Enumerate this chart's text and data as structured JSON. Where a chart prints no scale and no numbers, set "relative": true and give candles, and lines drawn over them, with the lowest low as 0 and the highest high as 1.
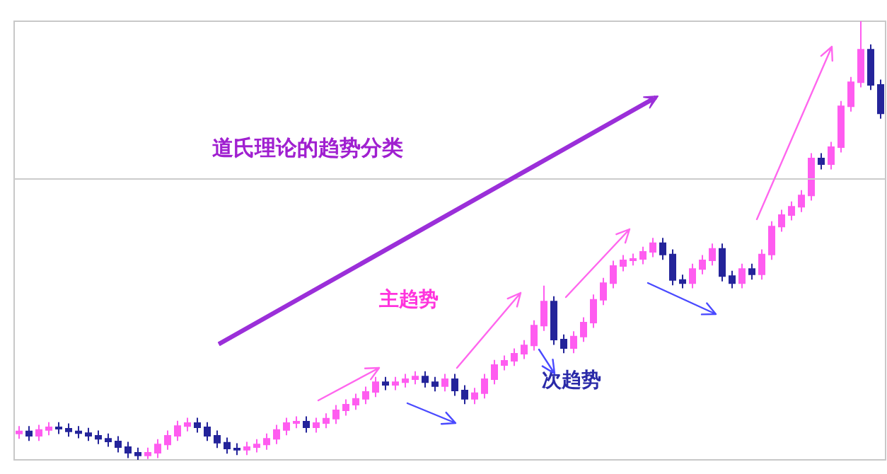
{
  "chart_data": {
    "type": "candlestick",
    "title": "道氏理论的趋势分类",
    "annotations": [
      "主趋势",
      "次趋势"
    ],
    "relative": true,
    "colors": [
      "#ff5cf0",
      "#24249a",
      "#ff5cf0",
      "#ff5cf0",
      "#24249a",
      "#24249a",
      "#24249a",
      "#24249a",
      "#24249a",
      "#24249a",
      "#24249a",
      "#24249a",
      "#24249a",
      "#ff5cf0",
      "#ff5cf0",
      "#ff5cf0",
      "#ff5cf0",
      "#ff5cf0",
      "#24249a",
      "#24249a",
      "#24249a",
      "#24249a",
      "#24249a",
      "#ff5cf0",
      "#ff5cf0",
      "#ff5cf0",
      "#ff5cf0",
      "#ff5cf0",
      "#ff5cf0",
      "#24249a",
      "#ff5cf0",
      "#ff5cf0",
      "#ff5cf0",
      "#ff5cf0",
      "#ff5cf0",
      "#ff5cf0",
      "#ff5cf0",
      "#24249a",
      "#ff5cf0",
      "#ff5cf0",
      "#ff5cf0",
      "#24249a",
      "#24249a",
      "#ff5cf0",
      "#24249a",
      "#24249a",
      "#ff5cf0",
      "#ff5cf0",
      "#ff5cf0",
      "#ff5cf0",
      "#ff5cf0",
      "#ff5cf0",
      "#ff5cf0",
      "#ff5cf0",
      "#24249a",
      "#24249a",
      "#ff5cf0",
      "#ff5cf0",
      "#ff5cf0",
      "#ff5cf0",
      "#ff5cf0",
      "#ff5cf0",
      "#ff5cf0",
      "#ff5cf0",
      "#ff5cf0",
      "#24249a",
      "#24249a",
      "#24249a",
      "#ff5cf0",
      "#ff5cf0",
      "#ff5cf0",
      "#24249a",
      "#24249a",
      "#ff5cf0",
      "#24249a",
      "#ff5cf0",
      "#ff5cf0",
      "#ff5cf0",
      "#ff5cf0",
      "#ff5cf0",
      "#ff5cf0",
      "#24249a",
      "#ff5cf0",
      "#ff5cf0",
      "#ff5cf0",
      "#ff5cf0",
      "#24249a",
      "#24249a"
    ],
    "ref_lines": [
      {
        "axis": "y",
        "value": 0.64,
        "color": "#cccccc"
      }
    ],
    "categories": [
      null,
      null,
      null,
      null,
      null,
      null,
      null,
      null,
      null,
      null,
      null,
      null,
      null,
      null,
      null,
      null,
      null,
      null,
      null,
      null,
      null,
      null,
      null,
      null,
      null,
      null,
      null,
      null,
      null,
      null,
      null,
      null,
      null,
      null,
      null,
      null,
      null,
      null,
      null,
      null,
      null,
      null,
      null,
      null,
      null,
      null,
      null,
      null,
      null,
      null,
      null,
      null,
      null,
      null,
      null,
      null,
      null,
      null,
      null,
      null,
      null,
      null,
      null,
      null,
      null,
      null,
      null,
      null,
      null,
      null,
      null,
      null,
      null,
      null,
      null,
      null,
      null,
      null,
      null,
      null,
      null,
      null,
      null,
      null,
      null,
      null,
      null,
      null
    ],
    "ohlc": [
      [
        0.06,
        0.077,
        0.048,
        0.065
      ],
      [
        0.065,
        0.077,
        0.043,
        0.055
      ],
      [
        0.055,
        0.08,
        0.043,
        0.068
      ],
      [
        0.068,
        0.086,
        0.056,
        0.074
      ],
      [
        0.074,
        0.086,
        0.059,
        0.071
      ],
      [
        0.071,
        0.083,
        0.053,
        0.065
      ],
      [
        0.065,
        0.077,
        0.049,
        0.061
      ],
      [
        0.061,
        0.073,
        0.043,
        0.055
      ],
      [
        0.055,
        0.067,
        0.036,
        0.048
      ],
      [
        0.048,
        0.06,
        0.03,
        0.042
      ],
      [
        0.042,
        0.054,
        0.017,
        0.029
      ],
      [
        0.029,
        0.041,
        0.004,
        0.016
      ],
      [
        0.016,
        0.028,
        0,
        0.01
      ],
      [
        0.01,
        0.028,
        0.002,
        0.016
      ],
      [
        0.016,
        0.047,
        0.004,
        0.035
      ],
      [
        0.035,
        0.067,
        0.023,
        0.055
      ],
      [
        0.055,
        0.089,
        0.043,
        0.077
      ],
      [
        0.077,
        0.096,
        0.065,
        0.084
      ],
      [
        0.084,
        0.096,
        0.062,
        0.074
      ],
      [
        0.074,
        0.086,
        0.043,
        0.055
      ],
      [
        0.055,
        0.067,
        0.027,
        0.039
      ],
      [
        0.039,
        0.051,
        0.014,
        0.026
      ],
      [
        0.026,
        0.038,
        0.011,
        0.023
      ],
      [
        0.023,
        0.041,
        0.011,
        0.029
      ],
      [
        0.029,
        0.047,
        0.017,
        0.035
      ],
      [
        0.035,
        0.06,
        0.023,
        0.048
      ],
      [
        0.048,
        0.08,
        0.036,
        0.068
      ],
      [
        0.068,
        0.096,
        0.056,
        0.084
      ],
      [
        0.084,
        0.099,
        0.072,
        0.087
      ],
      [
        0.087,
        0.099,
        0.062,
        0.074
      ],
      [
        0.074,
        0.096,
        0.062,
        0.084
      ],
      [
        0.084,
        0.106,
        0.072,
        0.094
      ],
      [
        0.094,
        0.125,
        0.082,
        0.113
      ],
      [
        0.113,
        0.138,
        0.101,
        0.126
      ],
      [
        0.126,
        0.151,
        0.114,
        0.139
      ],
      [
        0.139,
        0.167,
        0.127,
        0.155
      ],
      [
        0.155,
        0.189,
        0.143,
        0.177
      ],
      [
        0.177,
        0.189,
        0.159,
        0.171
      ],
      [
        0.171,
        0.189,
        0.159,
        0.177
      ],
      [
        0.177,
        0.196,
        0.165,
        0.184
      ],
      [
        0.184,
        0.202,
        0.172,
        0.19
      ],
      [
        0.19,
        0.202,
        0.165,
        0.177
      ],
      [
        0.177,
        0.189,
        0.156,
        0.168
      ],
      [
        0.168,
        0.196,
        0.156,
        0.184
      ],
      [
        0.184,
        0.196,
        0.146,
        0.158
      ],
      [
        0.158,
        0.17,
        0.127,
        0.139
      ],
      [
        0.139,
        0.164,
        0.127,
        0.152
      ],
      [
        0.152,
        0.196,
        0.14,
        0.184
      ],
      [
        0.184,
        0.228,
        0.172,
        0.216
      ],
      [
        0.216,
        0.238,
        0.204,
        0.226
      ],
      [
        0.226,
        0.254,
        0.214,
        0.242
      ],
      [
        0.242,
        0.273,
        0.23,
        0.261
      ],
      [
        0.261,
        0.318,
        0.249,
        0.306
      ],
      [
        0.306,
        0.397,
        0.294,
        0.361
      ],
      [
        0.361,
        0.373,
        0.262,
        0.274
      ],
      [
        0.274,
        0.286,
        0.243,
        0.255
      ],
      [
        0.255,
        0.293,
        0.243,
        0.281
      ],
      [
        0.281,
        0.325,
        0.269,
        0.313
      ],
      [
        0.313,
        0.377,
        0.301,
        0.365
      ],
      [
        0.365,
        0.415,
        0.353,
        0.403
      ],
      [
        0.403,
        0.454,
        0.391,
        0.442
      ],
      [
        0.442,
        0.467,
        0.43,
        0.455
      ],
      [
        0.455,
        0.47,
        0.443,
        0.458
      ],
      [
        0.458,
        0.486,
        0.446,
        0.474
      ],
      [
        0.474,
        0.506,
        0.462,
        0.494
      ],
      [
        0.494,
        0.506,
        0.456,
        0.468
      ],
      [
        0.468,
        0.48,
        0.398,
        0.41
      ],
      [
        0.41,
        0.422,
        0.391,
        0.403
      ],
      [
        0.403,
        0.447,
        0.391,
        0.435
      ],
      [
        0.435,
        0.467,
        0.423,
        0.455
      ],
      [
        0.455,
        0.493,
        0.443,
        0.481
      ],
      [
        0.481,
        0.493,
        0.407,
        0.419
      ],
      [
        0.419,
        0.431,
        0.391,
        0.403
      ],
      [
        0.403,
        0.447,
        0.391,
        0.435
      ],
      [
        0.435,
        0.447,
        0.411,
        0.423
      ],
      [
        0.423,
        0.48,
        0.411,
        0.468
      ],
      [
        0.468,
        0.544,
        0.456,
        0.532
      ],
      [
        0.532,
        0.57,
        0.52,
        0.558
      ],
      [
        0.558,
        0.589,
        0.546,
        0.577
      ],
      [
        0.577,
        0.615,
        0.565,
        0.603
      ],
      [
        0.603,
        0.699,
        0.591,
        0.687
      ],
      [
        0.687,
        0.699,
        0.662,
        0.674
      ],
      [
        0.674,
        0.725,
        0.662,
        0.713
      ],
      [
        0.713,
        0.818,
        0.701,
        0.806
      ],
      [
        0.806,
        0.873,
        0.794,
        0.861
      ],
      [
        0.861,
        1,
        0.849,
        0.935
      ],
      [
        0.935,
        0.947,
        0.843,
        0.855
      ],
      [
        0.855,
        0.867,
        0.778,
        0.79
      ]
    ]
  }
}
